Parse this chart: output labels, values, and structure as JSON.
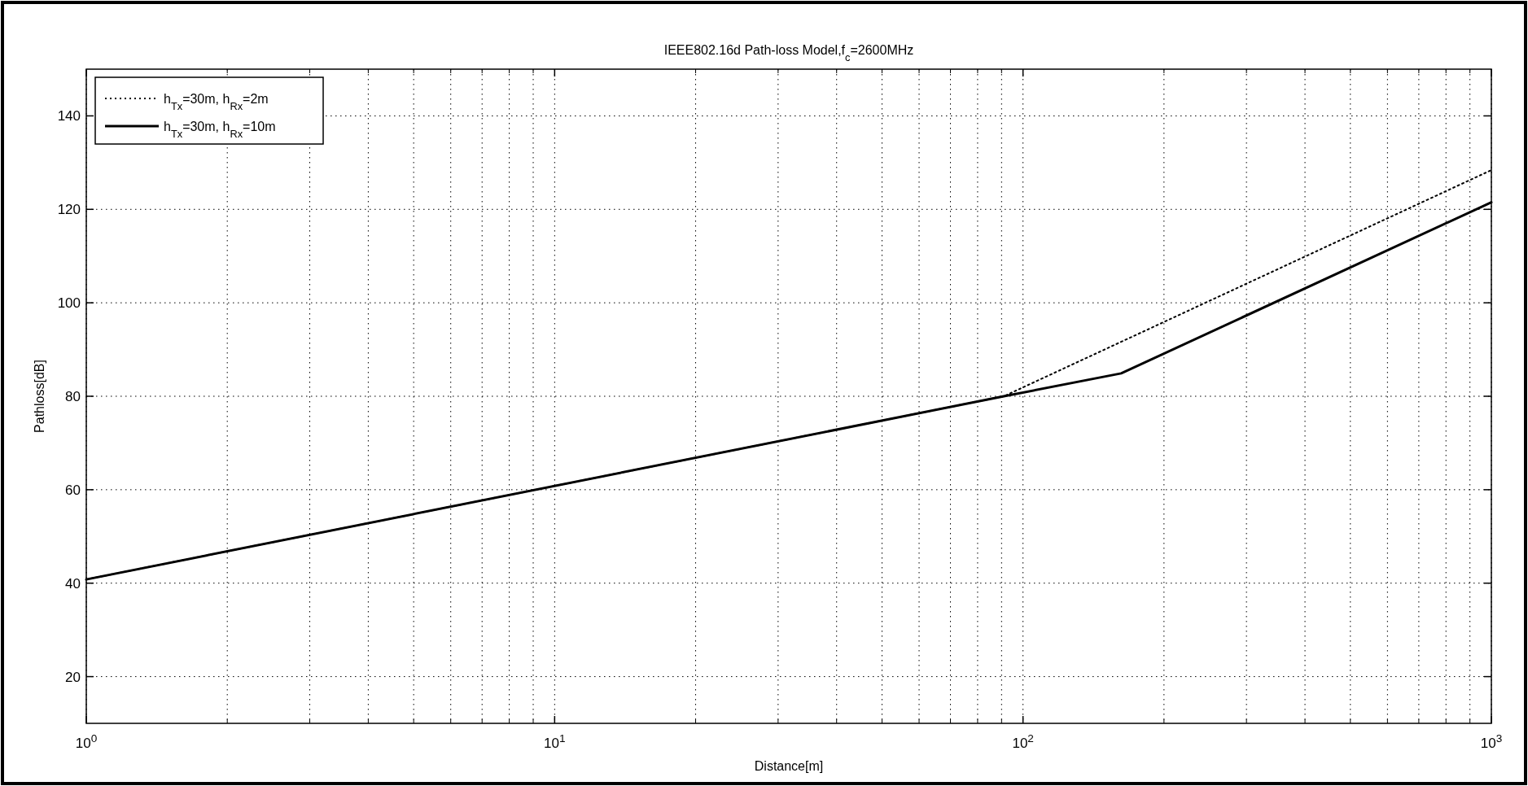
{
  "chart_data": {
    "type": "line",
    "title": "IEEE802.16d Path-loss Model,f$_{c}$=2600MHz",
    "xlabel": "Distance[m]",
    "ylabel": "Pathloss[dB]",
    "log": "x",
    "grid": true,
    "legend": "top left",
    "xlim": [
      1,
      1000
    ],
    "xticks": [
      {
        "value": 1,
        "label": "10$^{0}$"
      },
      {
        "value": 10,
        "label": "10$^{1}$"
      },
      {
        "value": 100,
        "label": "10$^{2}$"
      },
      {
        "value": 1000,
        "label": "10$^{3}$"
      }
    ],
    "ylim": [
      10,
      150
    ],
    "yticks": [
      20,
      40,
      60,
      80,
      100,
      120,
      140
    ],
    "series": [
      {
        "name": "h$_{Tx}$=30m, h$_{Rx}$=2m",
        "color": "#000000",
        "line_style": "dotted",
        "x": [
          1,
          91,
          1000
        ],
        "values": [
          40.8,
          80,
          128.4
        ]
      },
      {
        "name": "h$_{Tx}$=30m, h$_{Rx}$=10m",
        "color": "#000000",
        "line_style": "solid",
        "x": [
          1,
          91,
          162,
          1000
        ],
        "values": [
          40.8,
          80,
          84.9,
          121.5
        ]
      }
    ]
  }
}
